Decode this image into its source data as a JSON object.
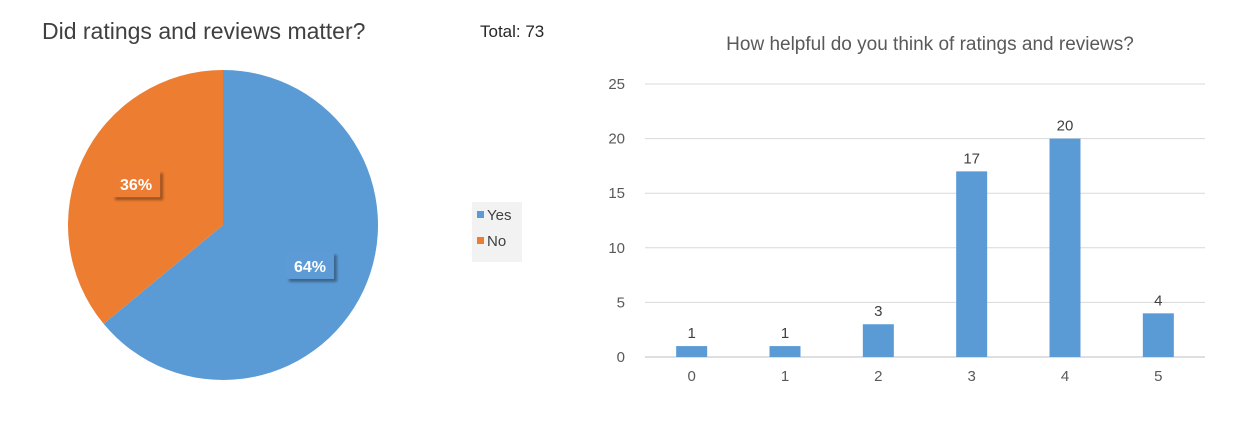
{
  "pie_title": "Did ratings and reviews matter?",
  "total_label": "Total: 73",
  "colors": {
    "blue": "#5b9bd5",
    "orange": "#ed7d31",
    "axis_text": "#595959",
    "grid": "#d9d9d9"
  },
  "chart_data": [
    {
      "type": "pie",
      "title": "Did ratings and reviews matter?",
      "slices": [
        {
          "name": "Yes",
          "value": 64,
          "label": "64%",
          "color": "#5b9bd5"
        },
        {
          "name": "No",
          "value": 36,
          "label": "36%",
          "color": "#ed7d31"
        }
      ],
      "legend": "right"
    },
    {
      "type": "bar",
      "title": "How helpful do you think of ratings and reviews?",
      "categories": [
        "0",
        "1",
        "2",
        "3",
        "4",
        "5"
      ],
      "values": [
        1,
        1,
        3,
        17,
        20,
        4
      ],
      "ylim": [
        0,
        25
      ],
      "yticks": [
        0,
        5,
        10,
        15,
        20,
        25
      ],
      "grid": true,
      "color": "#5b9bd5"
    }
  ]
}
